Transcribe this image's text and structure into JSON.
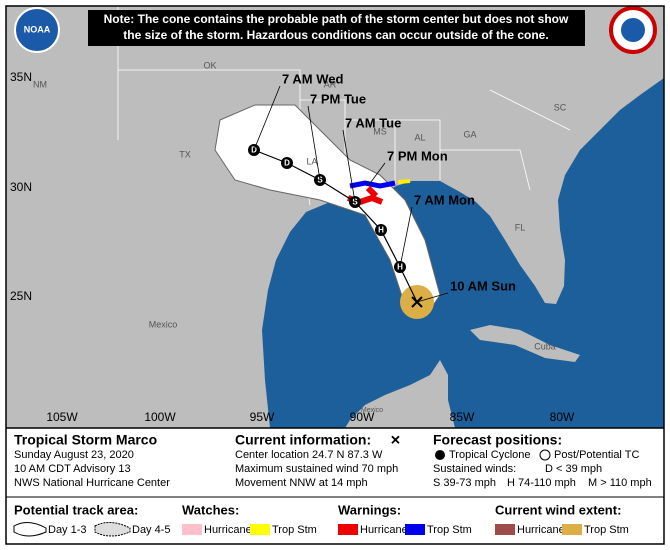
{
  "header": {
    "note_line1": "Note: The cone contains the probable path of the storm center but does not show",
    "note_line2": "the size of the storm. Hazardous conditions can occur outside of the cone.",
    "noaa_logo": "NOAA"
  },
  "map": {
    "lat_labels": [
      "35N",
      "30N",
      "25N"
    ],
    "lon_labels": [
      "105W",
      "100W",
      "95W",
      "90W",
      "85W",
      "80W"
    ],
    "places": [
      "NM",
      "OK",
      "AR",
      "MS",
      "AL",
      "GA",
      "SC",
      "TX",
      "LA",
      "FL",
      "Mexico",
      "Cuba",
      "Mexico"
    ]
  },
  "track": {
    "times": [
      "10 AM Sun",
      "7 AM Mon",
      "7 PM Mon",
      "7 AM Tue",
      "7 PM Tue",
      "7 AM Wed"
    ],
    "markers": [
      "H",
      "H",
      "S",
      "S",
      "D",
      "D"
    ]
  },
  "legend": {
    "storm": {
      "name": "Tropical Storm Marco",
      "date": "Sunday August 23, 2020",
      "advisory": "10 AM CDT Advisory 13",
      "office": "NWS National Hurricane Center"
    },
    "current": {
      "title": "Current information:",
      "symbol": "✕",
      "location": "Center location 24.7 N 87.3 W",
      "wind": "Maximum sustained wind 70 mph",
      "movement": "Movement NNW at 14 mph"
    },
    "forecast": {
      "title": "Forecast positions:",
      "tropical": "Tropical Cyclone",
      "post": "Post/Potential TC",
      "winds_title": "Sustained winds:",
      "d": "D < 39 mph",
      "s": "S 39-73 mph",
      "h": "H 74-110 mph",
      "m": "M > 110 mph"
    },
    "track_area": {
      "title": "Potential track area:",
      "day13": "Day 1-3",
      "day45": "Day 4-5"
    },
    "watches": {
      "title": "Watches:",
      "hurricane": "Hurricane",
      "storm": "Trop Stm"
    },
    "warnings": {
      "title": "Warnings:",
      "hurricane": "Hurricane",
      "storm": "Trop Stm"
    },
    "wind_extent": {
      "title": "Current wind extent:",
      "hurricane": "Hurricane",
      "storm": "Trop Stm"
    }
  }
}
